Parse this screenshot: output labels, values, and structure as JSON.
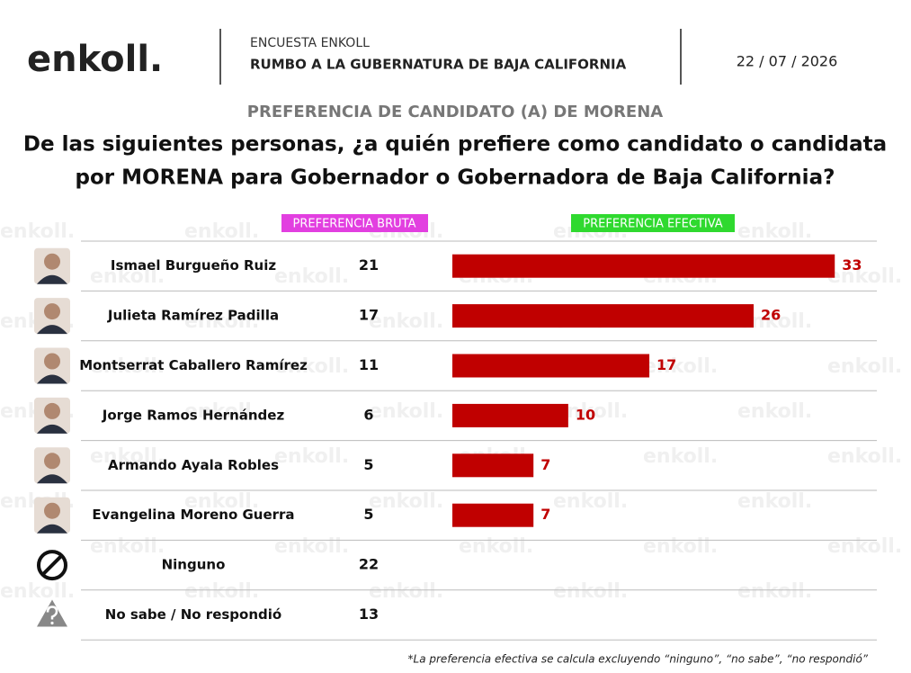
{
  "header": {
    "logo": "enkoll.",
    "survey": "ENCUESTA ENKOLL",
    "subtitle": "RUMBO A LA GUBERNATURA DE BAJA CALIFORNIA",
    "date": "22 / 07 / 2026"
  },
  "chart_data": {
    "type": "bar",
    "orientation": "horizontal",
    "title": "PREFERENCIA DE CANDIDATO (A) DE MORENA",
    "question": [
      "De las siguientes personas, ¿a quién prefiere como candidato o candidata",
      "por MORENA para Gobernador o Gobernadora de Baja California?"
    ],
    "categories": [
      "Ismael Burgueño Ruiz",
      "Julieta Ramírez Padilla",
      "Montserrat Caballero Ramírez",
      "Jorge Ramos Hernández",
      "Armando Ayala Robles",
      "Evangelina Moreno Guerra",
      "Ninguno",
      "No sabe / No respondió"
    ],
    "raw_name": "PREFERENCIA BRUTA",
    "raw_color": "#e23fe0",
    "raw_values": [
      21,
      17,
      11,
      6,
      5,
      5,
      22,
      13
    ],
    "series": [
      {
        "name": "PREFERENCIA EFECTIVA",
        "color": "#c00000",
        "label_color": "#2fd92f",
        "values": [
          33,
          26,
          17,
          10,
          7,
          7,
          null,
          null
        ]
      }
    ],
    "xlim": [
      0,
      35
    ],
    "footnote": "*La preferencia efectiva se calcula excluyendo “ninguno”, “no sabe”, “no respondió”"
  }
}
